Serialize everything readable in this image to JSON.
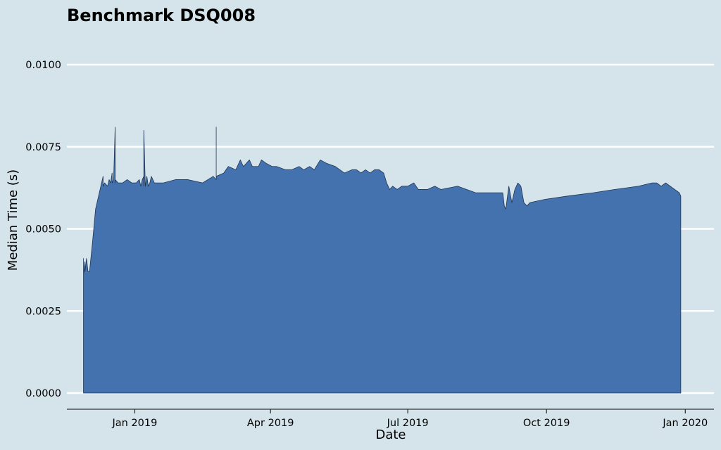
{
  "chart_data": {
    "type": "area",
    "title": "Benchmark DSQ008",
    "xlabel": "Date",
    "ylabel": "Median Time (s)",
    "ylim": [
      0,
      0.0111
    ],
    "xlim": [
      "2018-11-17",
      "2020-01-20"
    ],
    "grid": "horizontal",
    "colors": {
      "fill": "#4472ae",
      "stroke": "#1f3553",
      "background": "#d5e4eb",
      "grid": "#ffffff"
    },
    "y_ticks": [
      {
        "value": 0.0,
        "label": "0.0000"
      },
      {
        "value": 0.0025,
        "label": "0.0025"
      },
      {
        "value": 0.005,
        "label": "0.0050"
      },
      {
        "value": 0.0075,
        "label": "0.0075"
      },
      {
        "value": 0.01,
        "label": "0.0100"
      }
    ],
    "x_ticks": [
      {
        "value": "2019-01-01",
        "label": "Jan 2019"
      },
      {
        "value": "2019-04-01",
        "label": "Apr 2019"
      },
      {
        "value": "2019-07-01",
        "label": "Jul 2019"
      },
      {
        "value": "2019-10-01",
        "label": "Oct 2019"
      },
      {
        "value": "2020-01-01",
        "label": "Jan 2020"
      }
    ],
    "series": [
      {
        "x": [
          "2018-11-28",
          "2018-11-28",
          "2018-11-29",
          "2018-11-29",
          "2018-11-30",
          "2018-12-01",
          "2018-12-02",
          "2018-12-04",
          "2018-12-06",
          "2018-12-10",
          "2018-12-11",
          "2018-12-11",
          "2018-12-12",
          "2018-12-14",
          "2018-12-15",
          "2018-12-16",
          "2018-12-17",
          "2018-12-17",
          "2018-12-18",
          "2018-12-19",
          "2018-12-19",
          "2018-12-19",
          "2018-12-21",
          "2018-12-24",
          "2018-12-27",
          "2018-12-30",
          "2019-01-02",
          "2019-01-04",
          "2019-01-05",
          "2019-01-06",
          "2019-01-07",
          "2019-01-07",
          "2019-01-07",
          "2019-01-08",
          "2019-01-09",
          "2019-01-10",
          "2019-01-11",
          "2019-01-12",
          "2019-01-14",
          "2019-01-20",
          "2019-01-28",
          "2019-02-05",
          "2019-02-15",
          "2019-02-22",
          "2019-02-24",
          "2019-02-24",
          "2019-02-24",
          "2019-03-01",
          "2019-03-04",
          "2019-03-09",
          "2019-03-12",
          "2019-03-14",
          "2019-03-16",
          "2019-03-18",
          "2019-03-20",
          "2019-03-21",
          "2019-03-24",
          "2019-03-26",
          "2019-03-29",
          "2019-04-02",
          "2019-04-05",
          "2019-04-11",
          "2019-04-15",
          "2019-04-20",
          "2019-04-23",
          "2019-04-27",
          "2019-04-30",
          "2019-05-04",
          "2019-05-08",
          "2019-05-14",
          "2019-05-20",
          "2019-05-25",
          "2019-05-28",
          "2019-05-31",
          "2019-06-03",
          "2019-06-06",
          "2019-06-09",
          "2019-06-12",
          "2019-06-15",
          "2019-06-17",
          "2019-06-19",
          "2019-06-21",
          "2019-06-24",
          "2019-06-27",
          "2019-07-01",
          "2019-07-05",
          "2019-07-08",
          "2019-07-14",
          "2019-07-19",
          "2019-07-23",
          "2019-08-03",
          "2019-08-15",
          "2019-08-29",
          "2019-09-02",
          "2019-09-03",
          "2019-09-04",
          "2019-09-06",
          "2019-09-08",
          "2019-09-10",
          "2019-09-12",
          "2019-09-14",
          "2019-09-16",
          "2019-09-18",
          "2019-09-20",
          "2019-09-30",
          "2019-10-15",
          "2019-11-01",
          "2019-11-15",
          "2019-12-01",
          "2019-12-10",
          "2019-12-13",
          "2019-12-16",
          "2019-12-19",
          "2019-12-25",
          "2019-12-28",
          "2019-12-29"
        ],
        "y": [
          0.0041,
          0.0036,
          0.004,
          0.0037,
          0.0041,
          0.0037,
          0.0037,
          0.0046,
          0.0056,
          0.0064,
          0.0066,
          0.0063,
          0.0064,
          0.0063,
          0.0065,
          0.0064,
          0.0067,
          0.0064,
          0.0065,
          0.0081,
          0.0064,
          0.0065,
          0.0064,
          0.0064,
          0.0065,
          0.0064,
          0.0064,
          0.0065,
          0.0063,
          0.0065,
          0.0066,
          0.0063,
          0.008,
          0.0063,
          0.0066,
          0.0063,
          0.0064,
          0.0066,
          0.0064,
          0.0064,
          0.0065,
          0.0065,
          0.0064,
          0.0066,
          0.0065,
          0.0081,
          0.0066,
          0.0067,
          0.0069,
          0.0068,
          0.0071,
          0.0069,
          0.007,
          0.0071,
          0.0069,
          0.0069,
          0.0069,
          0.0071,
          0.007,
          0.0069,
          0.0069,
          0.0068,
          0.0068,
          0.0069,
          0.0068,
          0.0069,
          0.0068,
          0.0071,
          0.007,
          0.0069,
          0.0067,
          0.0068,
          0.0068,
          0.0067,
          0.0068,
          0.0067,
          0.0068,
          0.0068,
          0.0067,
          0.0064,
          0.0062,
          0.0063,
          0.0062,
          0.0063,
          0.0063,
          0.0064,
          0.0062,
          0.0062,
          0.0063,
          0.0062,
          0.0063,
          0.0061,
          0.0061,
          0.0061,
          0.0057,
          0.0056,
          0.0063,
          0.0058,
          0.0062,
          0.0064,
          0.0063,
          0.0058,
          0.0057,
          0.0058,
          0.0059,
          0.006,
          0.0061,
          0.0062,
          0.0063,
          0.0064,
          0.0064,
          0.0063,
          0.0064,
          0.0062,
          0.0061,
          0.006
        ]
      }
    ]
  }
}
